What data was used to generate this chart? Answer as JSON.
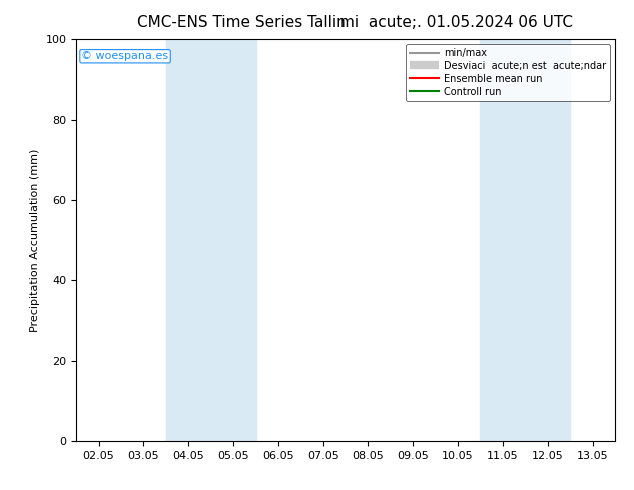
{
  "title_left": "CMC-ENS Time Series Tallin",
  "title_right": "mi  acute;. 01.05.2024 06 UTC",
  "ylabel": "Precipitation Accumulation (mm)",
  "ylim": [
    0,
    100
  ],
  "xtick_labels": [
    "02.05",
    "03.05",
    "04.05",
    "05.05",
    "06.05",
    "07.05",
    "08.05",
    "09.05",
    "10.05",
    "11.05",
    "12.05",
    "13.05"
  ],
  "xtick_positions": [
    0,
    1,
    2,
    3,
    4,
    5,
    6,
    7,
    8,
    9,
    10,
    11
  ],
  "ytick_labels": [
    "0",
    "20",
    "40",
    "60",
    "80",
    "100"
  ],
  "ytick_positions": [
    0,
    20,
    40,
    60,
    80,
    100
  ],
  "shaded_bands": [
    {
      "xmin": 2,
      "xmax": 4,
      "color": "#daeaf5"
    },
    {
      "xmin": 9,
      "xmax": 11,
      "color": "#daeaf5"
    }
  ],
  "legend_label_minmax": "min/max",
  "legend_label_std": "Desviaci  acute;n est  acute;ndar",
  "legend_label_ensemble": "Ensemble mean run",
  "legend_label_control": "Controll run",
  "watermark": "© woespana.es",
  "watermark_color": "#1e90ff",
  "background_color": "#ffffff",
  "grid_color": "#cccccc",
  "title_fontsize": 11,
  "tick_fontsize": 8,
  "ylabel_fontsize": 8
}
